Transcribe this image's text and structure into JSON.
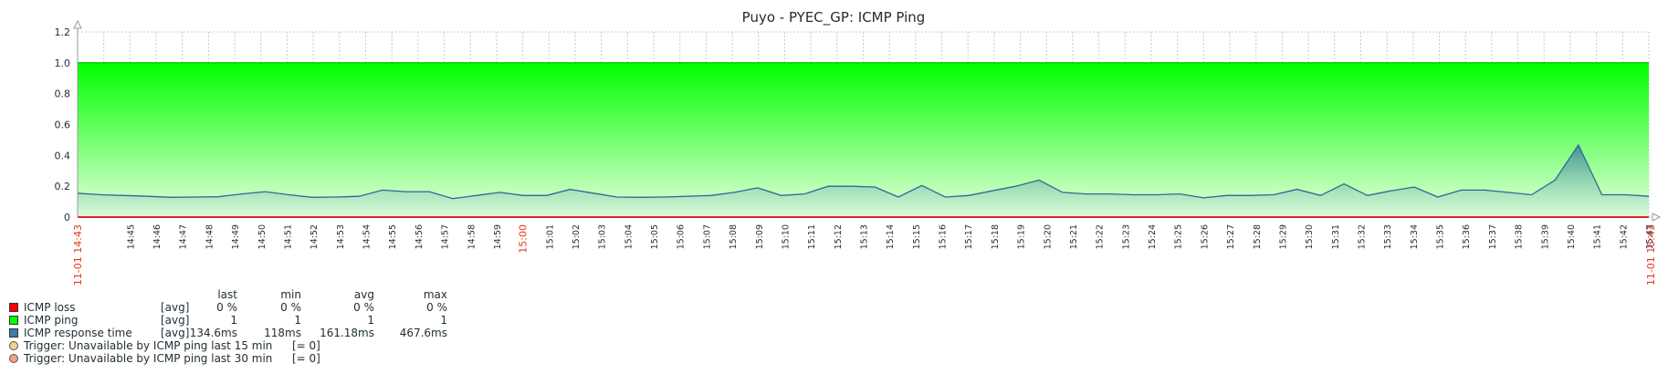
{
  "chart_data": {
    "type": "area",
    "title": "Puyo - PYEC_GP: ICMP Ping",
    "ylim": [
      0,
      1.2
    ],
    "yticks": [
      "0",
      "0.2",
      "0.4",
      "0.6",
      "0.8",
      "1.0",
      "1.2"
    ],
    "grid": true,
    "x_start_label": "11-01 14:43",
    "x_end_label": "11-01 15:43",
    "x_labels": [
      "14:45",
      "14:46",
      "14:47",
      "14:48",
      "14:49",
      "14:50",
      "14:51",
      "14:52",
      "14:53",
      "14:54",
      "14:55",
      "14:56",
      "14:57",
      "14:58",
      "14:59",
      "15:00",
      "15:01",
      "15:02",
      "15:03",
      "15:04",
      "15:05",
      "15:06",
      "15:07",
      "15:08",
      "15:09",
      "15:10",
      "15:11",
      "15:12",
      "15:13",
      "15:14",
      "15:15",
      "15:16",
      "15:17",
      "15:18",
      "15:19",
      "15:20",
      "15:21",
      "15:22",
      "15:23",
      "15:24",
      "15:25",
      "15:26",
      "15:27",
      "15:28",
      "15:29",
      "15:30",
      "15:31",
      "15:32",
      "15:33",
      "15:34",
      "15:35",
      "15:36",
      "15:37",
      "15:38",
      "15:39",
      "15:40",
      "15:41",
      "15:42",
      "15:43"
    ],
    "x_highlight_labels": [
      "15:00"
    ],
    "series": [
      {
        "name": "ICMP loss",
        "color": "#ff0000",
        "values": [
          0,
          0,
          0,
          0,
          0,
          0,
          0,
          0,
          0,
          0,
          0,
          0,
          0,
          0,
          0,
          0,
          0,
          0,
          0,
          0,
          0,
          0,
          0,
          0,
          0,
          0,
          0,
          0,
          0,
          0,
          0,
          0,
          0,
          0,
          0,
          0,
          0,
          0,
          0,
          0,
          0,
          0,
          0,
          0,
          0,
          0,
          0,
          0,
          0,
          0,
          0,
          0,
          0,
          0,
          0,
          0,
          0,
          0,
          0,
          0,
          0
        ]
      },
      {
        "name": "ICMP ping",
        "color": "#00ff00",
        "values": [
          1,
          1,
          1,
          1,
          1,
          1,
          1,
          1,
          1,
          1,
          1,
          1,
          1,
          1,
          1,
          1,
          1,
          1,
          1,
          1,
          1,
          1,
          1,
          1,
          1,
          1,
          1,
          1,
          1,
          1,
          1,
          1,
          1,
          1,
          1,
          1,
          1,
          1,
          1,
          1,
          1,
          1,
          1,
          1,
          1,
          1,
          1,
          1,
          1,
          1,
          1,
          1,
          1,
          1,
          1,
          1,
          1,
          1,
          1,
          1,
          1
        ]
      },
      {
        "name": "ICMP response time",
        "color": "#3b7ea1",
        "values": [
          0.155,
          0.145,
          0.14,
          0.135,
          0.128,
          0.13,
          0.132,
          0.15,
          0.165,
          0.145,
          0.128,
          0.13,
          0.135,
          0.175,
          0.165,
          0.165,
          0.12,
          0.14,
          0.16,
          0.14,
          0.14,
          0.18,
          0.155,
          0.13,
          0.128,
          0.13,
          0.135,
          0.14,
          0.16,
          0.19,
          0.14,
          0.15,
          0.2,
          0.2,
          0.195,
          0.13,
          0.205,
          0.13,
          0.14,
          0.17,
          0.2,
          0.24,
          0.16,
          0.15,
          0.15,
          0.145,
          0.145,
          0.15,
          0.125,
          0.14,
          0.14,
          0.145,
          0.18,
          0.14,
          0.215,
          0.14,
          0.17,
          0.195,
          0.13,
          0.175,
          0.175,
          0.16,
          0.145,
          0.24,
          0.4676,
          0.145,
          0.145,
          0.1346
        ]
      }
    ]
  },
  "legend": {
    "headers": {
      "last": "last",
      "min": "min",
      "avg": "avg",
      "max": "max"
    },
    "items": [
      {
        "name": "ICMP loss",
        "func": "[avg]",
        "last": "0 %",
        "min": "0 %",
        "avg": "0 %",
        "max": "0 %",
        "color": "#ff0000"
      },
      {
        "name": "ICMP ping",
        "func": "[avg]",
        "last": "1",
        "min": "1",
        "avg": "1",
        "max": "1",
        "color": "#00ff00"
      },
      {
        "name": "ICMP response time",
        "func": "[avg]",
        "last": "134.6ms",
        "min": "118ms",
        "avg": "161.18ms",
        "max": "467.6ms",
        "color": "#3b7ea1"
      }
    ],
    "triggers": [
      {
        "label": "Trigger: Unavailable by ICMP ping last 15 min",
        "value": "[= 0]",
        "color": "#f5d08a"
      },
      {
        "label": "Trigger: Unavailable by ICMP ping last 30 min",
        "value": "[= 0]",
        "color": "#f0a08a"
      }
    ]
  }
}
